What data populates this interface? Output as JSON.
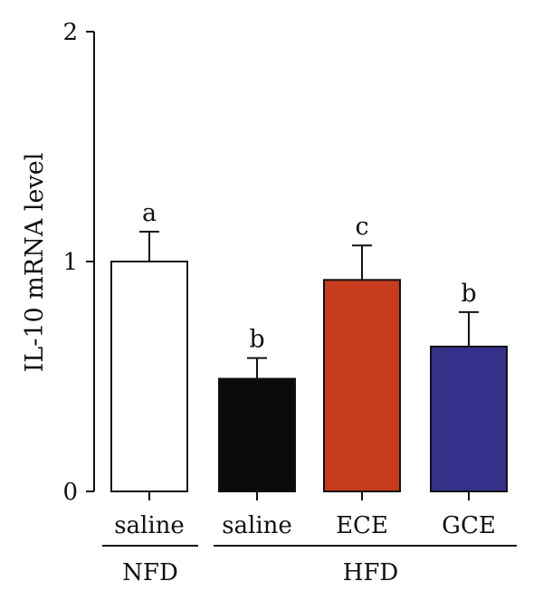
{
  "chart_data": {
    "type": "bar",
    "title": "",
    "xlabel": "",
    "ylabel": "IL-10 mRNA level",
    "ylim": [
      0,
      2
    ],
    "yticks": [
      {
        "value": 0,
        "label": "0"
      },
      {
        "value": 1,
        "label": "1"
      },
      {
        "value": 2,
        "label": "2"
      }
    ],
    "categories": [
      "saline",
      "saline",
      "ECE",
      "GCE"
    ],
    "values": [
      1.0,
      0.49,
      0.92,
      0.63
    ],
    "errors": [
      0.13,
      0.09,
      0.15,
      0.15
    ],
    "significance_letters": [
      "a",
      "b",
      "c",
      "b"
    ],
    "bar_colors": [
      "#ffffff",
      "#0a0a0a",
      "#c73c1d",
      "#35318a"
    ],
    "groups": [
      {
        "label": "NFD",
        "category_indices": [
          0
        ]
      },
      {
        "label": "HFD",
        "category_indices": [
          1,
          2,
          3
        ]
      }
    ],
    "grid": false,
    "legend": "none"
  }
}
